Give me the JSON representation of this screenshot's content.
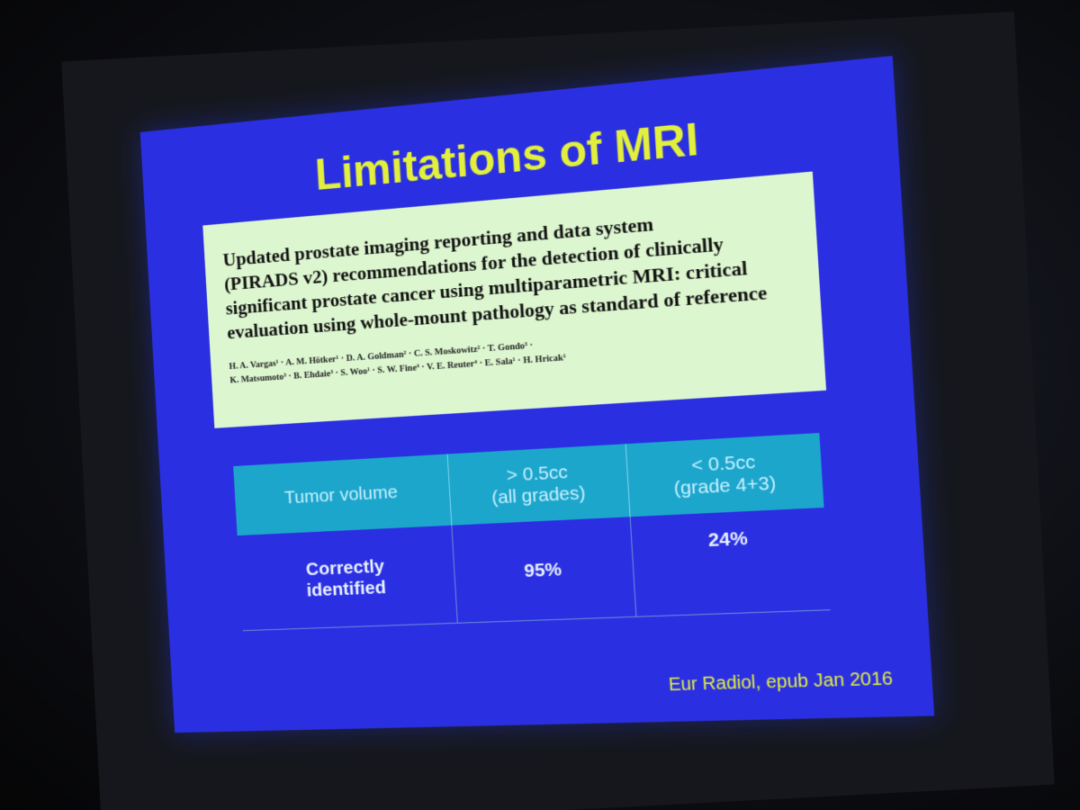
{
  "slide": {
    "title": "Limitations of MRI",
    "paper": {
      "title_lines": [
        "Updated prostate imaging reporting and data system",
        "(PIRADS v2) recommendations for the detection of clinically",
        "significant prostate cancer using multiparametric MRI: critical",
        "evaluation using whole-mount pathology as standard of reference"
      ],
      "author_lines": [
        "H. A. Vargas¹ · A. M. Hötker¹ · D. A. Goldman² · C. S. Moskowitz² · T. Gondo³ ·",
        "K. Matsumoto³ · B. Ehdaie³ · S. Woo¹ · S. W. Fine⁴ · V. E. Reuter⁴ · E. Sala¹ · H. Hricak¹"
      ]
    },
    "table": {
      "header": [
        [
          "Tumor volume"
        ],
        [
          "> 0.5cc",
          "(all grades)"
        ],
        [
          "< 0.5cc",
          "(grade 4+3)"
        ]
      ],
      "rows": [
        [
          [
            "Correctly",
            "identified"
          ],
          [
            "95%"
          ],
          [
            "24%"
          ]
        ]
      ]
    },
    "citation": "Eur Radiol, epub Jan 2016"
  }
}
